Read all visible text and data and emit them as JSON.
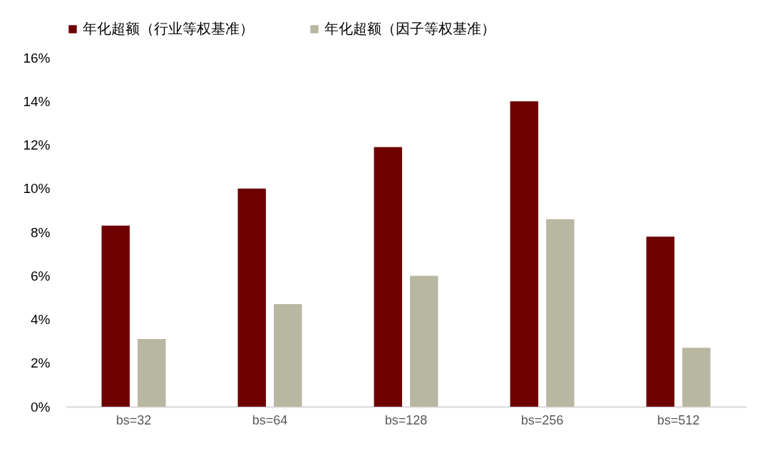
{
  "chart_data": {
    "type": "bar",
    "categories": [
      "bs=32",
      "bs=64",
      "bs=128",
      "bs=256",
      "bs=512"
    ],
    "series": [
      {
        "name": "年化超额（行业等权基准）",
        "color": "#6e0000",
        "values": [
          8.3,
          10.0,
          11.9,
          14.0,
          7.8
        ]
      },
      {
        "name": "年化超额（因子等权基准）",
        "color": "#b8b7a2",
        "values": [
          3.1,
          4.7,
          6.0,
          8.6,
          2.7
        ]
      }
    ],
    "ylim": [
      0,
      16
    ],
    "yticks": [
      {
        "value": 0,
        "label": "0%"
      },
      {
        "value": 2,
        "label": "2%"
      },
      {
        "value": 4,
        "label": "4%"
      },
      {
        "value": 6,
        "label": "6%"
      },
      {
        "value": 8,
        "label": "8%"
      },
      {
        "value": 10,
        "label": "10%"
      },
      {
        "value": 12,
        "label": "12%"
      },
      {
        "value": 14,
        "label": "14%"
      },
      {
        "value": 16,
        "label": "16%"
      }
    ],
    "grid": false,
    "legend": "top"
  }
}
